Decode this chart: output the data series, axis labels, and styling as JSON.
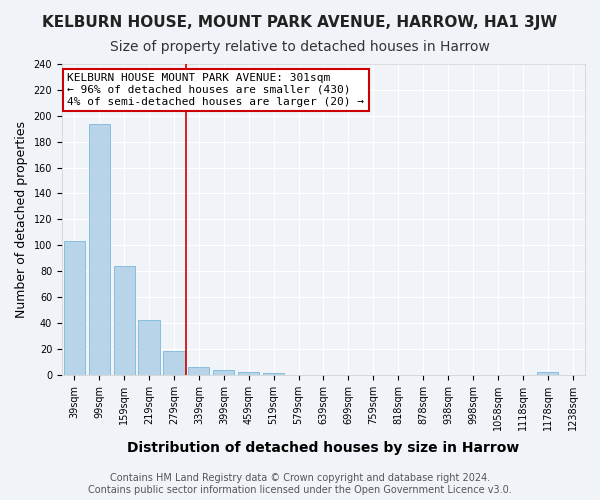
{
  "title": "KELBURN HOUSE, MOUNT PARK AVENUE, HARROW, HA1 3JW",
  "subtitle": "Size of property relative to detached houses in Harrow",
  "xlabel": "Distribution of detached houses by size in Harrow",
  "ylabel": "Number of detached properties",
  "categories": [
    "39sqm",
    "99sqm",
    "159sqm",
    "219sqm",
    "279sqm",
    "339sqm",
    "399sqm",
    "459sqm",
    "519sqm",
    "579sqm",
    "639sqm",
    "699sqm",
    "759sqm",
    "818sqm",
    "878sqm",
    "938sqm",
    "998sqm",
    "1058sqm",
    "1118sqm",
    "1178sqm",
    "1238sqm"
  ],
  "values": [
    103,
    194,
    84,
    42,
    18,
    6,
    4,
    2,
    1,
    0,
    0,
    0,
    0,
    0,
    0,
    0,
    0,
    0,
    0,
    2,
    0
  ],
  "bar_color": "#b8d4e8",
  "bar_edge_color": "#6aaed6",
  "vline_x": 4.5,
  "vline_color": "#cc0000",
  "annotation_text": "KELBURN HOUSE MOUNT PARK AVENUE: 301sqm\n← 96% of detached houses are smaller (430)\n4% of semi-detached houses are larger (20) →",
  "annotation_box_edgecolor": "#cc0000",
  "ylim": [
    0,
    240
  ],
  "yticks": [
    0,
    20,
    40,
    60,
    80,
    100,
    120,
    140,
    160,
    180,
    200,
    220,
    240
  ],
  "footer_text": "Contains HM Land Registry data © Crown copyright and database right 2024.\nContains public sector information licensed under the Open Government Licence v3.0.",
  "background_color": "#f0f4f8",
  "grid_color": "#ffffff",
  "title_fontsize": 11,
  "subtitle_fontsize": 10,
  "xlabel_fontsize": 10,
  "ylabel_fontsize": 9,
  "tick_fontsize": 7,
  "annotation_fontsize": 8,
  "footer_fontsize": 7
}
